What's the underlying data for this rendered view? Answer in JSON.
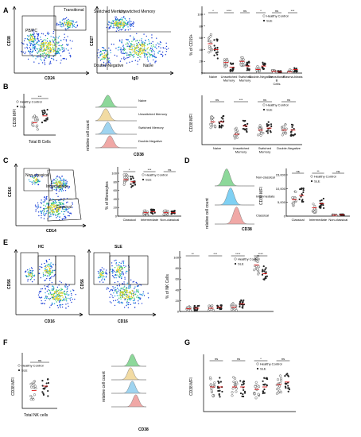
{
  "panels": {
    "A": {
      "letter": "A",
      "flow1": {
        "x_label": "CD24",
        "y_label": "CD38",
        "gates": [
          "Transitional",
          "PB/PC"
        ]
      },
      "flow2": {
        "x_label": "IgD",
        "y_label": "CD27",
        "gates": [
          "Switched Memory",
          "Unswitched Memory",
          "Double-Negative",
          "Naive"
        ]
      },
      "chart": {
        "ylabel": "% of CD19+",
        "yticks": [
          "0",
          "20",
          "40",
          "60",
          "80",
          "100"
        ],
        "sig": [
          "*",
          "****",
          "ns",
          "*",
          "ns",
          "***"
        ],
        "categories": [
          "Naive",
          "Unswitched Memory",
          "Switched Memory",
          "Double-Negative",
          "Transitional B Cells",
          "Plasma-blasts"
        ],
        "legend": [
          "Healthy Control",
          "SLE"
        ]
      }
    },
    "B": {
      "letter": "B",
      "left": {
        "ylabel": "CD38 MFI",
        "xlabel": "Total B Cells",
        "sig": "***",
        "legend": [
          "Healthy Control",
          "SLE"
        ]
      },
      "hist": {
        "ylabel": "relative cell count",
        "xlabel": "CD38",
        "labels": [
          "Naive",
          "Unswitched Memory",
          "Switched Memory",
          "Double-Negative"
        ]
      },
      "chart": {
        "ylabel": "CD38 MFI",
        "sig": [
          "ns",
          "***",
          "ns",
          "ns"
        ],
        "categories": [
          "Naive",
          "Unswitched Memory",
          "Switched Memory",
          "Double-Negative"
        ],
        "legend": [
          "Healthy Control",
          "SLE"
        ]
      }
    },
    "C": {
      "letter": "C",
      "flow": {
        "x_label": "CD14",
        "y_label": "CD16",
        "gates": [
          "Non-classical",
          "Intermediate",
          "Classical"
        ]
      },
      "chart": {
        "ylabel": "% of Monocytes",
        "yticks": [
          "0",
          "20",
          "40",
          "60",
          "80",
          "100"
        ],
        "sig": [
          "*",
          "***",
          "ns"
        ],
        "categories": [
          "Classical",
          "Intermediate",
          "Non-classical"
        ],
        "legend": [
          "Healthy Control",
          "SLE"
        ]
      }
    },
    "D": {
      "letter": "D",
      "hist": {
        "ylabel": "relative cell count",
        "xlabel": "CD38",
        "labels": [
          "Non-classical",
          "Inter-mediate",
          "Classical"
        ]
      },
      "chart": {
        "ylabel": "CD38 MFI",
        "yticks": [
          "0",
          "5,000",
          "10,000",
          "15,000"
        ],
        "sig": [
          "ns",
          "**",
          "ns"
        ],
        "categories": [
          "Classical",
          "Intermediate",
          "Non-classical"
        ],
        "legend": [
          "Healthy Control",
          "SLE"
        ]
      }
    },
    "E": {
      "letter": "E",
      "hc": {
        "title": "HC",
        "x_label": "CD16",
        "y_label": "CD56"
      },
      "sle": {
        "title": "SLE",
        "x_label": "CD16",
        "y_label": "CD56"
      },
      "chart": {
        "ylabel": "% of NK Cells",
        "yticks": [
          "0",
          "20",
          "40",
          "60",
          "80",
          "100"
        ],
        "sig": [
          "**",
          "***",
          "****",
          "****"
        ],
        "legend": [
          "Healthy Control",
          "SLE"
        ]
      }
    },
    "F": {
      "letter": "F",
      "left": {
        "ylabel": "CD38 MFI",
        "xlabel": "Total NK cells",
        "sig": "ns",
        "legend": [
          "Healthy Control",
          "SLE"
        ]
      },
      "hist": {
        "ylabel": "relative cell count",
        "xlabel": "CD38"
      }
    },
    "G": {
      "letter": "G",
      "chart": {
        "ylabel": "CD38 MFI",
        "sig": [
          "ns",
          "ns",
          "*",
          "ns"
        ],
        "legend": [
          "Healthy Control",
          "SLE"
        ]
      }
    }
  }
}
